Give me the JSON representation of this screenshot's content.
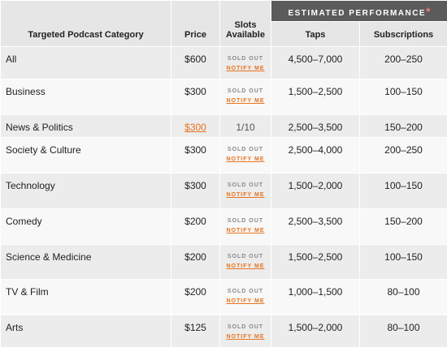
{
  "header": {
    "banner": "ESTIMATED PERFORMANCE",
    "asterisk": "*",
    "columns": [
      "Targeted Podcast Category",
      "Price",
      "Slots Available",
      "Taps",
      "Subscriptions"
    ]
  },
  "rows": [
    {
      "category": "All",
      "price": "$600",
      "slots": "SOLD OUT",
      "action": "NOTIFY ME",
      "taps": "4,500–7,000",
      "subscriptions": "200–250"
    },
    {
      "category": "Business",
      "price": "$300",
      "slots": "SOLD OUT",
      "action": "NOTIFY ME",
      "taps": "1,500–2,500",
      "subscriptions": "100–150"
    },
    {
      "category": "News & Politics",
      "price": "$300",
      "slots": "1/10",
      "taps": "2,500–3,500",
      "subscriptions": "150–200"
    },
    {
      "category": "Society & Culture",
      "price": "$300",
      "slots": "SOLD OUT",
      "action": "NOTIFY ME",
      "taps": "2,500–4,000",
      "subscriptions": "200–250"
    },
    {
      "category": "Technology",
      "price": "$300",
      "slots": "SOLD OUT",
      "action": "NOTIFY ME",
      "taps": "1,500–2,000",
      "subscriptions": "100–150"
    },
    {
      "category": "Comedy",
      "price": "$200",
      "slots": "SOLD OUT",
      "action": "NOTIFY ME",
      "taps": "2,500–3,500",
      "subscriptions": "150–200"
    },
    {
      "category": "Science & Medicine",
      "price": "$200",
      "slots": "SOLD OUT",
      "action": "NOTIFY ME",
      "taps": "1,500–2,500",
      "subscriptions": "100–150"
    },
    {
      "category": "TV & Film",
      "price": "$200",
      "slots": "SOLD OUT",
      "action": "NOTIFY ME",
      "taps": "1,000–1,500",
      "subscriptions": "80–100"
    },
    {
      "category": "Arts",
      "price": "$125",
      "slots": "SOLD OUT",
      "action": "NOTIFY ME",
      "taps": "1,500–2,000",
      "subscriptions": "80–100"
    }
  ]
}
